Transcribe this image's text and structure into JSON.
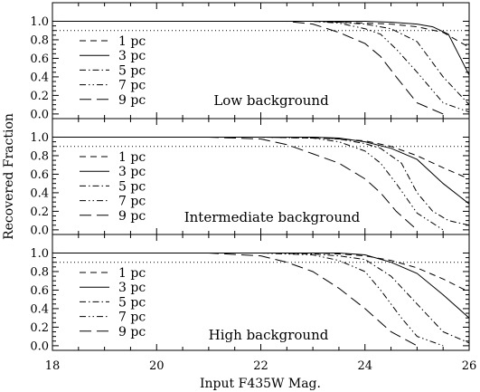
{
  "chart_data": {
    "type": "line",
    "xlabel": "Input F435W Mag.",
    "ylabel": "Recovered Fraction",
    "xlim": [
      18,
      26
    ],
    "ylim": [
      -0.05,
      1.2
    ],
    "x_ticks": [
      "18",
      "20",
      "22",
      "24",
      "26"
    ],
    "y_ticks": [
      "0.0",
      "0.2",
      "0.4",
      "0.6",
      "0.8",
      "1.0"
    ],
    "reference_line": {
      "y": 0.9,
      "style": "dotted"
    },
    "grid": false,
    "legend_placement": "left",
    "series_names": [
      "1 pc",
      "3 pc",
      "5 pc",
      "7 pc",
      "9 pc"
    ],
    "panels": [
      {
        "title": "Low background",
        "series": [
          {
            "name": "1 pc",
            "style": "dashed",
            "x": [
              18,
              20,
              21.0,
              22,
              23,
              23.5,
              24,
              24.5,
              25,
              25.5,
              26
            ],
            "y": [
              1.0,
              1.0,
              1.0,
              1.0,
              1.0,
              0.99,
              0.98,
              0.97,
              0.94,
              0.88,
              0.72
            ]
          },
          {
            "name": "3 pc",
            "style": "solid",
            "x": [
              18,
              20,
              22,
              23,
              24,
              24.5,
              25,
              25.3,
              25.6,
              26
            ],
            "y": [
              1.0,
              1.0,
              1.0,
              1.0,
              1.0,
              0.99,
              0.97,
              0.94,
              0.86,
              0.42
            ]
          },
          {
            "name": "5 pc",
            "style": "dashdot",
            "x": [
              18,
              20,
              22,
              23,
              23.5,
              24,
              24.5,
              25,
              25.5,
              26
            ],
            "y": [
              1.0,
              1.0,
              1.0,
              1.0,
              0.99,
              0.97,
              0.92,
              0.78,
              0.4,
              0.1
            ]
          },
          {
            "name": "7 pc",
            "style": "dashdotdot",
            "x": [
              18,
              20,
              22,
              23,
              23.5,
              24,
              24.3,
              24.6,
              25,
              25.5,
              26
            ],
            "y": [
              1.0,
              1.0,
              1.0,
              1.0,
              0.98,
              0.92,
              0.86,
              0.7,
              0.45,
              0.12,
              0.02
            ]
          },
          {
            "name": "9 pc",
            "style": "longdash",
            "x": [
              18,
              20,
              21.5,
              22.5,
              23,
              23.5,
              24,
              24.3,
              24.6,
              25,
              25.5
            ],
            "y": [
              1.0,
              1.0,
              1.0,
              1.0,
              0.97,
              0.88,
              0.76,
              0.62,
              0.4,
              0.12,
              0.0
            ]
          }
        ]
      },
      {
        "title": "Intermediate background",
        "series": [
          {
            "name": "1 pc",
            "style": "dashed",
            "x": [
              18,
              20,
              22,
              23,
              23.5,
              24,
              24.5,
              25,
              25.5,
              26
            ],
            "y": [
              1.0,
              1.0,
              1.0,
              0.99,
              0.98,
              0.96,
              0.9,
              0.8,
              0.67,
              0.55
            ]
          },
          {
            "name": "3 pc",
            "style": "solid",
            "x": [
              18,
              20,
              22,
              23,
              23.5,
              24,
              24.5,
              25,
              25.5,
              26
            ],
            "y": [
              1.0,
              1.0,
              1.0,
              1.0,
              0.99,
              0.95,
              0.88,
              0.76,
              0.5,
              0.28
            ]
          },
          {
            "name": "5 pc",
            "style": "dashdot",
            "x": [
              18,
              20,
              22,
              23,
              23.5,
              24,
              24.3,
              24.7,
              25,
              25.3,
              25.6,
              26
            ],
            "y": [
              1.0,
              1.0,
              1.0,
              1.0,
              0.98,
              0.93,
              0.88,
              0.72,
              0.4,
              0.2,
              0.1,
              0.05
            ]
          },
          {
            "name": "7 pc",
            "style": "dashdotdot",
            "x": [
              18,
              20,
              22,
              23,
              23.5,
              24,
              24.3,
              24.6,
              25,
              25.5
            ],
            "y": [
              1.0,
              1.0,
              1.0,
              0.99,
              0.95,
              0.85,
              0.72,
              0.5,
              0.18,
              0.0
            ]
          },
          {
            "name": "9 pc",
            "style": "longdash",
            "x": [
              18,
              20,
              21,
              22,
              22.5,
              23,
              23.5,
              24,
              24.3,
              24.6,
              25
            ],
            "y": [
              1.0,
              1.0,
              1.0,
              0.98,
              0.92,
              0.82,
              0.72,
              0.55,
              0.4,
              0.2,
              0.0
            ]
          }
        ]
      },
      {
        "title": "High background",
        "series": [
          {
            "name": "1 pc",
            "style": "dashed",
            "x": [
              18,
              20,
              22,
              23,
              23.5,
              24,
              24.5,
              25,
              25.5,
              26
            ],
            "y": [
              1.0,
              1.0,
              1.0,
              1.0,
              0.99,
              0.97,
              0.92,
              0.84,
              0.72,
              0.58
            ]
          },
          {
            "name": "3 pc",
            "style": "solid",
            "x": [
              18,
              20,
              22,
              23,
              23.5,
              24,
              24.5,
              25,
              25.5,
              26
            ],
            "y": [
              1.0,
              1.0,
              1.0,
              1.0,
              1.0,
              0.98,
              0.9,
              0.78,
              0.55,
              0.3
            ]
          },
          {
            "name": "5 pc",
            "style": "dashdot",
            "x": [
              18,
              20,
              22,
              23,
              23.5,
              24,
              24.5,
              25,
              25.5,
              26
            ],
            "y": [
              1.0,
              1.0,
              1.0,
              0.99,
              0.97,
              0.93,
              0.75,
              0.45,
              0.15,
              0.03
            ]
          },
          {
            "name": "7 pc",
            "style": "dashdotdot",
            "x": [
              18,
              20,
              22,
              23,
              23.5,
              24,
              24.3,
              24.7,
              25,
              25.5
            ],
            "y": [
              1.0,
              1.0,
              1.0,
              0.98,
              0.92,
              0.8,
              0.6,
              0.3,
              0.1,
              0.0
            ]
          },
          {
            "name": "9 pc",
            "style": "longdash",
            "x": [
              18,
              20,
              21,
              22,
              22.5,
              23,
              23.5,
              24,
              24.5,
              25
            ],
            "y": [
              1.0,
              1.0,
              1.0,
              0.97,
              0.9,
              0.8,
              0.62,
              0.4,
              0.15,
              0.0
            ]
          }
        ]
      }
    ]
  }
}
